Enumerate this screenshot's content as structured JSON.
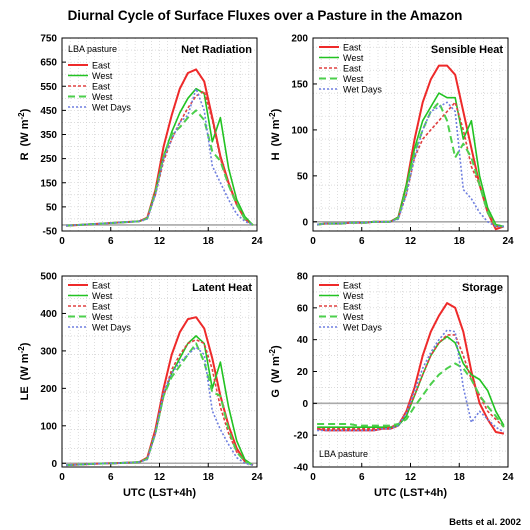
{
  "figure": {
    "title": "Diurnal Cycle of Surface Fluxes over a Pasture in the Amazon",
    "credit": "Betts et al. 2002"
  },
  "colors": {
    "background": "#ffffff",
    "plot_bg": "#ffffff",
    "grid": "#c8c8c8",
    "zero_line": "#aaaaaa",
    "east_solid": "#ee2a2a",
    "west_solid": "#22c322",
    "east_dotted": "#e04040",
    "west_dashed": "#4ccf4c",
    "wet_days": "#6f7fe0"
  },
  "chart_data": [
    {
      "type": "line",
      "title": "Net Radiation",
      "note": "LBA pasture",
      "ylabel": "R",
      "yunit": "(W m",
      "yunit_sup": "-2",
      "yunit_end": ")",
      "xlabel": "",
      "xlim": [
        0,
        24
      ],
      "ylim": [
        -50,
        750
      ],
      "xticks": [
        0,
        6,
        12,
        18,
        24
      ],
      "yticks": [
        -50,
        50,
        150,
        250,
        350,
        450,
        550,
        650,
        750
      ],
      "zero": -25,
      "grid": true,
      "legend": "top-left",
      "x": [
        0.5,
        1.5,
        2.5,
        3.5,
        4.5,
        5.5,
        6.5,
        7.5,
        8.5,
        9.5,
        10.5,
        11.5,
        12.5,
        13.5,
        14.5,
        15.5,
        16.5,
        17.5,
        18.5,
        19.5,
        20.5,
        21.5,
        22.5,
        23.5
      ],
      "series": [
        {
          "name": "East",
          "style": "east_solid",
          "values": [
            -28,
            -26,
            -24,
            -22,
            -20,
            -18,
            -16,
            -14,
            -12,
            -10,
            5,
            120,
            300,
            430,
            540,
            605,
            620,
            570,
            420,
            260,
            150,
            60,
            0,
            -25
          ]
        },
        {
          "name": "West",
          "style": "west_solid",
          "values": [
            -28,
            -26,
            -24,
            -22,
            -20,
            -18,
            -16,
            -14,
            -12,
            -10,
            2,
            110,
            260,
            360,
            440,
            500,
            540,
            520,
            320,
            420,
            210,
            80,
            10,
            -25
          ]
        },
        {
          "name": "East",
          "style": "east_dotted",
          "values": [
            -28,
            -26,
            -24,
            -22,
            -20,
            -18,
            -16,
            -14,
            -12,
            -10,
            3,
            100,
            240,
            330,
            400,
            460,
            510,
            530,
            410,
            250,
            140,
            60,
            0,
            -25
          ]
        },
        {
          "name": "West",
          "style": "west_dashed",
          "values": [
            -28,
            -26,
            -24,
            -22,
            -20,
            -18,
            -16,
            -14,
            -12,
            -10,
            2,
            110,
            260,
            350,
            380,
            420,
            450,
            410,
            280,
            240,
            140,
            60,
            0,
            -25
          ]
        },
        {
          "name": "Wet Days",
          "style": "wet_days",
          "values": [
            -28,
            -26,
            -24,
            -22,
            -20,
            -18,
            -16,
            -14,
            -12,
            -10,
            0,
            100,
            250,
            330,
            400,
            430,
            540,
            450,
            220,
            150,
            80,
            20,
            -10,
            -25
          ]
        }
      ]
    },
    {
      "type": "line",
      "title": "Sensible Heat",
      "note": "",
      "ylabel": "H",
      "yunit": "(W m",
      "yunit_sup": "-2",
      "yunit_end": ")",
      "xlabel": "",
      "xlim": [
        0,
        24
      ],
      "ylim": [
        -10,
        200
      ],
      "xticks": [
        0,
        6,
        12,
        18,
        24
      ],
      "yticks": [
        0,
        50,
        100,
        150,
        200
      ],
      "zero": 0,
      "grid": true,
      "legend": "top-left",
      "x": [
        0.5,
        1.5,
        2.5,
        3.5,
        4.5,
        5.5,
        6.5,
        7.5,
        8.5,
        9.5,
        10.5,
        11.5,
        12.5,
        13.5,
        14.5,
        15.5,
        16.5,
        17.5,
        18.5,
        19.5,
        20.5,
        21.5,
        22.5,
        23.5
      ],
      "series": [
        {
          "name": "East",
          "style": "east_solid",
          "values": [
            -3,
            -2,
            -2,
            -2,
            -1,
            -1,
            -1,
            0,
            0,
            0,
            5,
            40,
            90,
            130,
            155,
            170,
            170,
            160,
            120,
            80,
            40,
            10,
            -8,
            -5
          ]
        },
        {
          "name": "West",
          "style": "west_solid",
          "values": [
            -3,
            -2,
            -2,
            -2,
            -1,
            -1,
            -1,
            0,
            0,
            0,
            5,
            40,
            80,
            110,
            125,
            140,
            135,
            135,
            90,
            110,
            50,
            15,
            -3,
            -5
          ]
        },
        {
          "name": "East",
          "style": "east_dotted",
          "values": [
            -3,
            -2,
            -2,
            -2,
            -1,
            -1,
            -1,
            0,
            0,
            0,
            4,
            30,
            70,
            90,
            100,
            110,
            120,
            130,
            100,
            60,
            40,
            10,
            -5,
            -5
          ]
        },
        {
          "name": "West",
          "style": "west_dashed",
          "values": [
            -3,
            -2,
            -2,
            -2,
            -1,
            -1,
            -1,
            0,
            0,
            0,
            4,
            35,
            75,
            100,
            120,
            130,
            110,
            70,
            85,
            70,
            40,
            10,
            -5,
            -5
          ]
        },
        {
          "name": "Wet Days",
          "style": "wet_days",
          "values": [
            -3,
            -2,
            -2,
            -2,
            -1,
            -1,
            -1,
            0,
            0,
            0,
            3,
            30,
            70,
            100,
            120,
            125,
            130,
            120,
            35,
            25,
            10,
            0,
            -5,
            -5
          ]
        }
      ]
    },
    {
      "type": "line",
      "title": "Latent Heat",
      "note": "",
      "ylabel": "LE",
      "yunit": "(W m",
      "yunit_sup": "-2",
      "yunit_end": ")",
      "xlabel": "UTC (LST+4h)",
      "xlim": [
        0,
        24
      ],
      "ylim": [
        -10,
        500
      ],
      "xticks": [
        0,
        6,
        12,
        18,
        24
      ],
      "yticks": [
        0,
        100,
        200,
        300,
        400,
        500
      ],
      "zero": 0,
      "grid": true,
      "legend": "top-left",
      "x": [
        0.5,
        1.5,
        2.5,
        3.5,
        4.5,
        5.5,
        6.5,
        7.5,
        8.5,
        9.5,
        10.5,
        11.5,
        12.5,
        13.5,
        14.5,
        15.5,
        16.5,
        17.5,
        18.5,
        19.5,
        20.5,
        21.5,
        22.5,
        23.5
      ],
      "series": [
        {
          "name": "East",
          "style": "east_solid",
          "values": [
            -5,
            -4,
            -3,
            -2,
            -1,
            0,
            0,
            1,
            2,
            3,
            15,
            90,
            200,
            290,
            350,
            385,
            390,
            360,
            280,
            180,
            100,
            40,
            5,
            -5
          ]
        },
        {
          "name": "West",
          "style": "west_solid",
          "values": [
            -5,
            -4,
            -3,
            -2,
            -1,
            0,
            0,
            1,
            2,
            3,
            12,
            80,
            180,
            240,
            280,
            320,
            340,
            320,
            200,
            270,
            150,
            60,
            10,
            -5
          ]
        },
        {
          "name": "East",
          "style": "east_dotted",
          "values": [
            -5,
            -4,
            -3,
            -2,
            -1,
            0,
            0,
            1,
            2,
            3,
            12,
            80,
            180,
            250,
            290,
            320,
            330,
            320,
            250,
            150,
            80,
            30,
            5,
            -5
          ]
        },
        {
          "name": "West",
          "style": "west_dashed",
          "values": [
            -5,
            -4,
            -3,
            -2,
            -1,
            0,
            0,
            1,
            2,
            3,
            12,
            80,
            180,
            230,
            260,
            290,
            320,
            270,
            190,
            180,
            90,
            30,
            5,
            -5
          ]
        },
        {
          "name": "Wet Days",
          "style": "wet_days",
          "values": [
            -5,
            -4,
            -3,
            -2,
            -1,
            0,
            0,
            1,
            2,
            3,
            10,
            80,
            190,
            240,
            270,
            290,
            310,
            290,
            140,
            90,
            50,
            15,
            0,
            -5
          ]
        }
      ]
    },
    {
      "type": "line",
      "title": "Storage",
      "note": "LBA pasture",
      "ylabel": "G",
      "yunit": "(W m",
      "yunit_sup": "-2",
      "yunit_end": ")",
      "xlabel": "UTC (LST+4h)",
      "xlim": [
        0,
        24
      ],
      "ylim": [
        -40,
        80
      ],
      "xticks": [
        0,
        6,
        12,
        18,
        24
      ],
      "yticks": [
        -40,
        -20,
        0,
        20,
        40,
        60,
        80
      ],
      "zero": 0,
      "grid": true,
      "legend": "top-left",
      "x": [
        0.5,
        1.5,
        2.5,
        3.5,
        4.5,
        5.5,
        6.5,
        7.5,
        8.5,
        9.5,
        10.5,
        11.5,
        12.5,
        13.5,
        14.5,
        15.5,
        16.5,
        17.5,
        18.5,
        19.5,
        20.5,
        21.5,
        22.5,
        23.5
      ],
      "series": [
        {
          "name": "East",
          "style": "east_solid",
          "values": [
            -16,
            -17,
            -17,
            -17,
            -17,
            -17,
            -17,
            -17,
            -16,
            -16,
            -14,
            -5,
            10,
            30,
            45,
            55,
            63,
            60,
            45,
            20,
            0,
            -10,
            -18,
            -19
          ]
        },
        {
          "name": "West",
          "style": "west_solid",
          "values": [
            -15,
            -15,
            -15,
            -15,
            -15,
            -15,
            -15,
            -15,
            -15,
            -15,
            -14,
            -8,
            5,
            18,
            30,
            38,
            42,
            38,
            25,
            18,
            15,
            8,
            -5,
            -14
          ]
        },
        {
          "name": "East",
          "style": "east_dotted",
          "values": [
            -16,
            -16,
            -16,
            -16,
            -16,
            -16,
            -16,
            -16,
            -16,
            -15,
            -13,
            -6,
            5,
            18,
            30,
            38,
            43,
            43,
            30,
            15,
            5,
            -5,
            -10,
            -15
          ]
        },
        {
          "name": "West",
          "style": "west_dashed",
          "values": [
            -13,
            -13,
            -13,
            -13,
            -13,
            -14,
            -14,
            -14,
            -14,
            -14,
            -13,
            -10,
            -2,
            5,
            12,
            18,
            22,
            25,
            22,
            15,
            5,
            -2,
            -8,
            -15
          ]
        },
        {
          "name": "Wet Days",
          "style": "wet_days",
          "values": [
            -17,
            -17,
            -17,
            -17,
            -17,
            -17,
            -17,
            -17,
            -16,
            -16,
            -14,
            -6,
            8,
            22,
            32,
            40,
            46,
            45,
            10,
            -12,
            -5,
            -10,
            -15,
            -18
          ]
        }
      ]
    }
  ]
}
